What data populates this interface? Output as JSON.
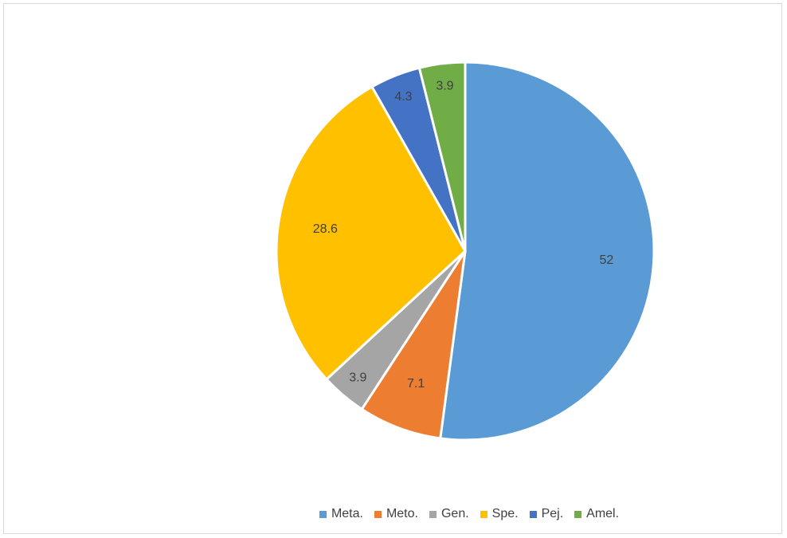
{
  "chart_data": {
    "type": "pie",
    "title": "",
    "categories": [
      "Meta.",
      "Meto.",
      "Gen.",
      "Spe.",
      "Pej.",
      "Amel."
    ],
    "values": [
      52,
      7.1,
      3.9,
      28.6,
      4.3,
      3.9
    ],
    "value_labels": [
      "52",
      "7.1",
      "3.9",
      "28.6",
      "4.3",
      "3.9"
    ],
    "colors": [
      "#5b9bd5",
      "#ed7d31",
      "#a5a5a5",
      "#ffc000",
      "#4472c4",
      "#70ad47"
    ],
    "legend_position": "bottom",
    "start_angle": "12 o'clock",
    "direction": "clockwise"
  }
}
